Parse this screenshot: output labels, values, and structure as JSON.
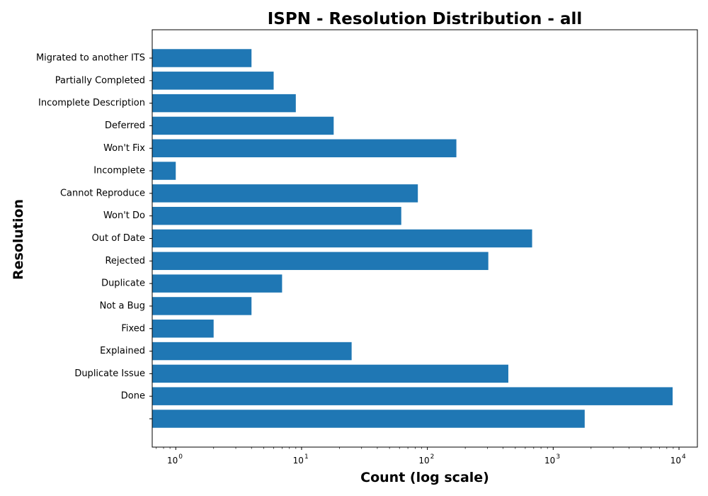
{
  "chart_data": {
    "type": "bar",
    "orientation": "horizontal",
    "title": "ISPN - Resolution Distribution - all",
    "xlabel": "Count (log scale)",
    "ylabel": "Resolution",
    "xscale": "log",
    "xlim": [
      0.65,
      14000
    ],
    "xticks": [
      {
        "base": "10",
        "exp": "0",
        "value": 1
      },
      {
        "base": "10",
        "exp": "1",
        "value": 10
      },
      {
        "base": "10",
        "exp": "2",
        "value": 100
      },
      {
        "base": "10",
        "exp": "3",
        "value": 1000
      },
      {
        "base": "10",
        "exp": "4",
        "value": 10000
      }
    ],
    "categories": [
      "Migrated to another ITS",
      "Partially Completed",
      "Incomplete Description",
      "Deferred",
      "Won't Fix",
      "Incomplete",
      "Cannot Reproduce",
      "Won't Do",
      "Out of Date",
      "Rejected",
      "Duplicate",
      "Not a Bug",
      "Fixed",
      "Explained",
      "Duplicate Issue",
      "Done",
      ""
    ],
    "values": [
      4,
      6,
      9,
      18,
      170,
      1,
      84,
      62,
      680,
      305,
      7,
      4,
      2,
      25,
      440,
      8900,
      1780
    ],
    "bar_color": "#1f77b4",
    "grid": false,
    "legend": "none"
  }
}
